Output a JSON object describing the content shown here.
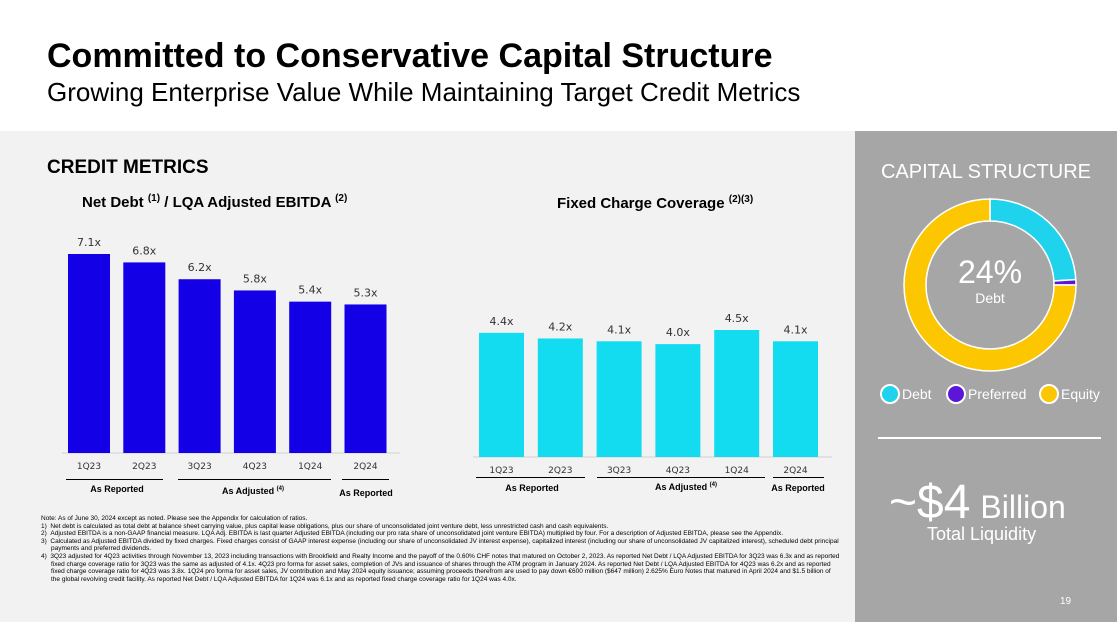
{
  "header": {
    "title": "Committed to Conservative Capital Structure",
    "subtitle": "Growing Enterprise Value While Maintaining Target Credit Metrics"
  },
  "credit_metrics": {
    "section_title": "CREDIT METRICS",
    "chart1_title": "Net Debt ",
    "chart1_fn1": "(1)",
    "chart1_title_mid": " / LQA Adjusted EBITDA ",
    "chart1_fn2": "(2)",
    "chart2_title": "Fixed Charge Coverage ",
    "chart2_fn": "(2)(3)",
    "groups": {
      "as_reported": "As Reported",
      "as_adjusted": "As Adjusted ",
      "as_adjusted_fn": "(4)"
    }
  },
  "colors": {
    "net_debt_bar": "#1400e6",
    "fcc_bar": "#14dcf0",
    "debt": "#1fd3ec",
    "preferred": "#5b16d8",
    "equity": "#fcc700"
  },
  "chart_data": [
    {
      "type": "bar",
      "title": "Net Debt (1) / LQA Adjusted EBITDA (2)",
      "categories": [
        "1Q23",
        "2Q23",
        "3Q23",
        "4Q23",
        "1Q24",
        "2Q24"
      ],
      "values": [
        7.1,
        6.8,
        6.2,
        5.8,
        5.4,
        5.3
      ],
      "labels": [
        "7.1x",
        "6.8x",
        "6.2x",
        "5.8x",
        "5.4x",
        "5.3x"
      ],
      "ylim": [
        0,
        7.1
      ]
    },
    {
      "type": "bar",
      "title": "Fixed Charge Coverage (2)(3)",
      "categories": [
        "1Q23",
        "2Q23",
        "3Q23",
        "4Q23",
        "1Q24",
        "2Q24"
      ],
      "values": [
        4.4,
        4.2,
        4.1,
        4.0,
        4.5,
        4.1
      ],
      "labels": [
        "4.4x",
        "4.2x",
        "4.1x",
        "4.0x",
        "4.5x",
        "4.1x"
      ],
      "ylim": [
        0,
        4.5
      ]
    },
    {
      "type": "pie",
      "title": "CAPITAL STRUCTURE",
      "categories": [
        "Debt",
        "Preferred",
        "Equity"
      ],
      "values": [
        24,
        1,
        75
      ],
      "center_value": "24%",
      "center_label": "Debt"
    }
  ],
  "notes": [
    "Note: As of June 30, 2024 except as noted. Please see the Appendix for calculation of ratios.",
    "1)  Net debt is calculated as total debt at balance sheet carrying value, plus capital lease obligations, plus our share of unconsolidated joint venture debt, less unrestricted cash and cash equivalents.",
    "2)  Adjusted EBITDA is a non-GAAP financial measure. LQA Adj. EBITDA is last quarter Adjusted EBITDA (including our pro rata share of unconsolidated joint venture EBITDA) multiplied by four. For a description of Adjusted EBITDA, please see the Appendix.",
    "3)  Calculated as Adjusted EBITDA divided by fixed charges. Fixed charges consist of GAAP interest expense (including our share of unconsolidated JV interest expense), capitalized interest (including our share of unconsolidated JV capitalized interest), scheduled debt principal payments and preferred dividends.",
    "4)  3Q23 adjusted for 4Q23 activities through November 13, 2023 including transactions with Brookfield and Realty Income and the payoff of the 0.60% CHF notes that matured on October 2, 2023. As reported Net Debt / LQA Adjusted EBITDA for 3Q23 was 6.3x and as reported fixed charge coverage ratio for 3Q23 was the same as adjusted of 4.1x. 4Q23 pro forma for asset sales, completion of JVs and issuance of shares through the ATM program in January 2024. As reported Net Debt / LQA Adjusted EBITDA for 4Q23 was 6.2x and as reported fixed charge coverage ratio for 4Q23 was 3.8x. 1Q24 pro forma for asset sales, JV contribution and May 2024 equity issuance; assuming proceeds therefrom are used to pay down €600 million ($647 million) 2.625% Euro Notes that matured in April 2024 and $1.5 billion of the global revolving credit facility. As reported Net Debt / LQA Adjusted EBITDA for 1Q24 was 6.1x and as reported fixed charge coverage ratio for 1Q24 was 4.0x."
  ],
  "capital_structure": {
    "title": "CAPITAL STRUCTURE",
    "center_value": "24%",
    "center_label": "Debt",
    "legend": [
      "Debt",
      "Preferred",
      "Equity"
    ]
  },
  "liquidity": {
    "amount": "~$4",
    "unit": "Billion",
    "label": "Total Liquidity"
  },
  "page_number": "19"
}
